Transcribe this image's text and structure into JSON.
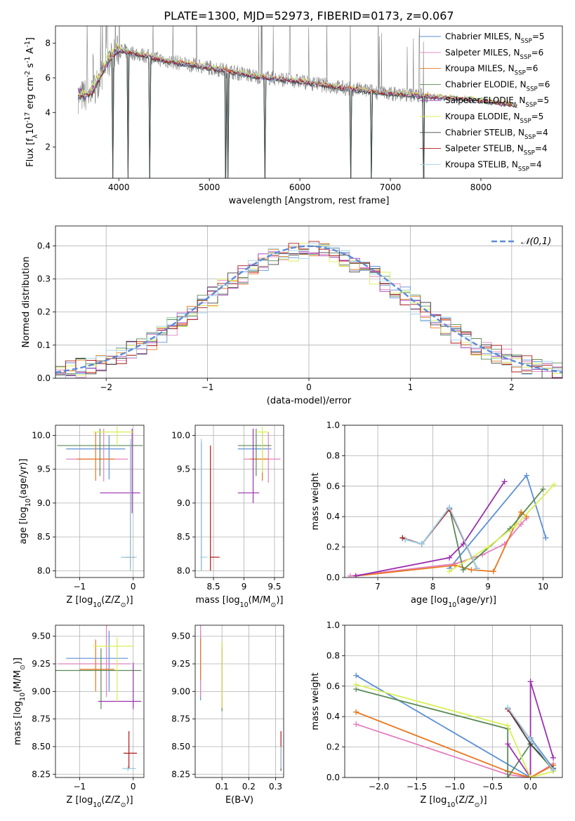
{
  "title": "PLATE=1300, MJD=52973, FIBERID=0173, z=0.067",
  "colors": {
    "Chabrier MILES": "#5b8fd6",
    "Salpeter MILES": "#e480c0",
    "Kroupa MILES": "#e8771e",
    "Chabrier ELODIE": "#5a8a55",
    "Salpeter ELODIE": "#9b30b0",
    "Kroupa ELODIE": "#d8ef55",
    "Chabrier STELIB": "#444444",
    "Salpeter STELIB": "#b01818",
    "Kroupa STELIB": "#9ed2ea",
    "observed": "#808080",
    "gaussian": "#5b8bd6"
  },
  "legend_labels": [
    "Chabrier MILES, N$_{SSP}$=5",
    "Salpeter MILES, N$_{SSP}$=6",
    "Kroupa MILES, N$_{SSP}$=6",
    "Chabrier ELODIE, N$_{SSP}$=6",
    "Salpeter ELODIE, N$_{SSP}$=5",
    "Kroupa ELODIE, N$_{SSP}$=5",
    "Chabrier STELIB, N$_{SSP}$=4",
    "Salpeter STELIB, N$_{SSP}$=4",
    "Kroupa STELIB, N$_{SSP}$=4"
  ],
  "chart_data": [
    {
      "type": "line",
      "id": "spectrum",
      "xlabel": "wavelength [Angstrom, rest frame]",
      "ylabel": "Flux [f$_\\lambda$10$^{-17}$ erg cm$^{-2}$ s$^{-1}$ A$^{-1}$]",
      "xlim": [
        3300,
        8900
      ],
      "ylim": [
        0.2,
        9.0
      ],
      "xticks": [
        4000,
        5000,
        6000,
        7000,
        8000
      ],
      "yticks": [
        2,
        4,
        6,
        8
      ],
      "continuum": {
        "x": [
          3550,
          3700,
          3900,
          4000,
          4200,
          4500,
          5000,
          5500,
          6000,
          6500,
          7000,
          7500,
          8000,
          8400
        ],
        "y": [
          4.9,
          5.1,
          7.1,
          7.6,
          7.4,
          7.0,
          6.6,
          6.1,
          5.8,
          5.4,
          5.1,
          4.9,
          4.7,
          4.4
        ]
      },
      "model_end": 8400,
      "observed_noise": 0.45,
      "observed_end": 7420,
      "absorption_lines": [
        3934,
        4102,
        4341,
        5177,
        5206,
        5617,
        6563,
        6789,
        7371
      ],
      "emission_spikes": [
        3650,
        3720,
        3800,
        3870,
        4340,
        4860,
        5577,
        5890,
        6300,
        6563,
        6863,
        7250,
        7320
      ],
      "legend_position": "top-right"
    },
    {
      "type": "step",
      "id": "residuals",
      "xlabel": "(data-model)/error",
      "ylabel": "Normed distribution",
      "xlim": [
        -2.5,
        2.5
      ],
      "ylim": [
        0.0,
        0.46
      ],
      "xticks": [
        -2,
        -1,
        0,
        1,
        2
      ],
      "yticks": [
        0.0,
        0.1,
        0.2,
        0.3,
        0.4
      ],
      "bins": [
        -2.5,
        2.5,
        50
      ],
      "gaussian_label": "$\\mathcal{N}(0,1)$",
      "legend_position": "top-right",
      "grid": true
    },
    {
      "type": "errorbar",
      "id": "age-vs-Z",
      "xlabel": "Z [log$_{10}$(Z/Z$_\\odot$)]",
      "ylabel": "age  [log$_{10}$(age/yr)]",
      "xlim": [
        -1.45,
        0.2
      ],
      "ylim": [
        7.9,
        10.15
      ],
      "xticks": [
        -1,
        0
      ],
      "yticks": [
        8.0,
        8.5,
        9.0,
        9.5,
        10.0
      ],
      "points": [
        {
          "m": "Chabrier MILES",
          "x": -0.45,
          "y": 9.8,
          "xe": [
            0.8,
            0.3
          ],
          "ye": [
            0.45,
            0.2
          ]
        },
        {
          "m": "Salpeter MILES",
          "x": -0.55,
          "y": 9.65,
          "xe": [
            0.7,
            0.45
          ],
          "ye": [
            0.33,
            0.45
          ]
        },
        {
          "m": "Kroupa MILES",
          "x": -0.7,
          "y": 9.65,
          "xe": [
            0.35,
            0.35
          ],
          "ye": [
            0.32,
            0.4
          ]
        },
        {
          "m": "Chabrier ELODIE",
          "x": -0.62,
          "y": 9.85,
          "xe": [
            0.8,
            0.8
          ],
          "ye": [
            0.45,
            0.25
          ]
        },
        {
          "m": "Salpeter ELODIE",
          "x": -0.02,
          "y": 9.15,
          "xe": [
            0.6,
            0.15
          ],
          "ye": [
            0.3,
            0.95
          ]
        },
        {
          "m": "Kroupa ELODIE",
          "x": -0.3,
          "y": 10.05,
          "xe": [
            0.45,
            0.3
          ],
          "ye": [
            0.2,
            0.08
          ]
        },
        {
          "m": "Chabrier STELIB",
          "x": -0.05,
          "y": 8.2,
          "xe": [
            0.18,
            0.1
          ],
          "ye": [
            0.2,
            1.7
          ]
        },
        {
          "m": "Salpeter STELIB",
          "x": -0.05,
          "y": 8.2,
          "xe": [
            0.1,
            0.08
          ],
          "ye": [
            0.15,
            1.65
          ]
        },
        {
          "m": "Kroupa STELIB",
          "x": -0.05,
          "y": 8.2,
          "xe": [
            0.18,
            0.12
          ],
          "ye": [
            0.2,
            1.75
          ]
        }
      ]
    },
    {
      "type": "errorbar",
      "id": "age-vs-mass",
      "xlabel": "mass [log$_{10}$(M/M$_\\odot$)]",
      "ylabel": "",
      "xlim": [
        8.2,
        9.65
      ],
      "ylim": [
        7.9,
        10.15
      ],
      "xticks": [
        8.5,
        9.0,
        9.5
      ],
      "yticks": [
        8.0,
        8.5,
        9.0,
        9.5,
        10.0
      ],
      "points": [
        {
          "m": "Chabrier MILES",
          "x": 9.3,
          "y": 9.8,
          "xe": [
            0.4,
            0.15
          ],
          "ye": [
            0.45,
            0.25
          ]
        },
        {
          "m": "Salpeter MILES",
          "x": 9.4,
          "y": 9.65,
          "xe": [
            0.4,
            0.2
          ],
          "ye": [
            0.35,
            0.4
          ]
        },
        {
          "m": "Kroupa MILES",
          "x": 9.3,
          "y": 9.65,
          "xe": [
            0.2,
            0.1
          ],
          "ye": [
            0.32,
            0.4
          ]
        },
        {
          "m": "Chabrier ELODIE",
          "x": 9.2,
          "y": 9.85,
          "xe": [
            0.3,
            0.25
          ],
          "ye": [
            0.45,
            0.25
          ]
        },
        {
          "m": "Salpeter ELODIE",
          "x": 9.15,
          "y": 9.15,
          "xe": [
            0.25,
            0.1
          ],
          "ye": [
            0.15,
            0.95
          ]
        },
        {
          "m": "Kroupa ELODIE",
          "x": 9.3,
          "y": 10.05,
          "xe": [
            0.1,
            0.1
          ],
          "ye": [
            0.6,
            0.08
          ]
        },
        {
          "m": "Chabrier STELIB",
          "x": 8.3,
          "y": 8.2,
          "xe": [
            0.01,
            0.01
          ],
          "ye": [
            0.2,
            1.7
          ]
        },
        {
          "m": "Salpeter STELIB",
          "x": 8.45,
          "y": 8.2,
          "xe": [
            0.01,
            0.15
          ],
          "ye": [
            0.2,
            1.65
          ]
        },
        {
          "m": "Kroupa STELIB",
          "x": 8.3,
          "y": 8.2,
          "xe": [
            0.02,
            0.1
          ],
          "ye": [
            0.2,
            1.75
          ]
        }
      ]
    },
    {
      "type": "line",
      "id": "weight-vs-age",
      "xlabel": "age  [log$_{10}$(age/yr)]",
      "ylabel": "mass weight",
      "xlim": [
        6.4,
        10.35
      ],
      "ylim": [
        0.0,
        1.0
      ],
      "xticks": [
        7,
        8,
        9,
        10
      ],
      "yticks": [
        0.0,
        0.2,
        0.4,
        0.6,
        0.8,
        1.0
      ],
      "series": [
        {
          "m": "Chabrier MILES",
          "x": [
            8.3,
            9.7,
            10.05
          ],
          "y": [
            0.06,
            0.67,
            0.26
          ]
        },
        {
          "m": "Salpeter MILES",
          "x": [
            6.5,
            8.4,
            8.9,
            9.3,
            9.6,
            9.7
          ],
          "y": [
            0.01,
            0.09,
            0.15,
            0.22,
            0.35,
            0.39
          ]
        },
        {
          "m": "Kroupa MILES",
          "x": [
            6.6,
            8.4,
            8.7,
            9.1,
            9.6,
            9.7
          ],
          "y": [
            0.01,
            0.08,
            0.05,
            0.04,
            0.43,
            0.4
          ]
        },
        {
          "m": "Chabrier ELODIE",
          "x": [
            7.45,
            7.8,
            8.3,
            8.55,
            9.4,
            10.0
          ],
          "y": [
            0.26,
            0.22,
            0.46,
            0.05,
            0.32,
            0.58
          ]
        },
        {
          "m": "Salpeter ELODIE",
          "x": [
            6.6,
            8.3,
            8.55,
            9.3
          ],
          "y": [
            0.01,
            0.13,
            0.22,
            0.63
          ]
        },
        {
          "m": "Kroupa ELODIE",
          "x": [
            8.3,
            9.0,
            9.5,
            10.2
          ],
          "y": [
            0.04,
            0.2,
            0.34,
            0.61
          ]
        },
        {
          "m": "Chabrier STELIB",
          "x": [
            7.5,
            7.8,
            8.3,
            8.8
          ],
          "y": [
            0.25,
            0.22,
            0.45,
            0.06
          ]
        },
        {
          "m": "Salpeter STELIB",
          "x": [
            7.45,
            7.8,
            8.3,
            8.8
          ],
          "y": [
            0.26,
            0.22,
            0.45,
            0.06
          ]
        },
        {
          "m": "Kroupa STELIB",
          "x": [
            7.5,
            7.8,
            8.3,
            8.8
          ],
          "y": [
            0.25,
            0.22,
            0.46,
            0.06
          ]
        }
      ]
    },
    {
      "type": "errorbar",
      "id": "mass-vs-Z",
      "xlabel": "Z [log$_{10}$(Z/Z$_\\odot$)]",
      "ylabel": "mass [log$_{10}$(M/M$_\\odot$)]",
      "xlim": [
        -1.45,
        0.2
      ],
      "ylim": [
        8.22,
        9.6
      ],
      "xticks": [
        -1,
        0
      ],
      "yticks": [
        8.25,
        8.5,
        8.75,
        9.0,
        9.25,
        9.5
      ],
      "points": [
        {
          "m": "Chabrier MILES",
          "x": -0.45,
          "y": 9.3,
          "xe": [
            0.8,
            0.35
          ],
          "ye": [
            0.3,
            0.25
          ]
        },
        {
          "m": "Salpeter MILES",
          "x": -0.5,
          "y": 9.25,
          "xe": [
            0.9,
            0.45
          ],
          "ye": [
            0.3,
            0.35
          ]
        },
        {
          "m": "Kroupa MILES",
          "x": -0.7,
          "y": 9.2,
          "xe": [
            0.3,
            0.35
          ],
          "ye": [
            0.2,
            0.27
          ]
        },
        {
          "m": "Chabrier ELODIE",
          "x": -0.6,
          "y": 9.19,
          "xe": [
            0.85,
            0.75
          ],
          "ye": [
            0.35,
            0.2
          ]
        },
        {
          "m": "Salpeter ELODIE",
          "x": 0.0,
          "y": 8.91,
          "xe": [
            0.65,
            0.15
          ],
          "ye": [
            0.07,
            0.35
          ]
        },
        {
          "m": "Kroupa ELODIE",
          "x": -0.3,
          "y": 9.41,
          "xe": [
            0.45,
            0.3
          ],
          "ye": [
            0.5,
            0.08
          ]
        },
        {
          "m": "Chabrier STELIB",
          "x": -0.1,
          "y": 8.3,
          "xe": [
            0.1,
            0.15
          ],
          "ye": [
            0.02,
            0.02
          ]
        },
        {
          "m": "Salpeter STELIB",
          "x": -0.08,
          "y": 8.44,
          "xe": [
            0.1,
            0.15
          ],
          "ye": [
            0.14,
            0.2
          ]
        },
        {
          "m": "Kroupa STELIB",
          "x": -0.1,
          "y": 8.3,
          "xe": [
            0.1,
            0.15
          ],
          "ye": [
            0.02,
            0.02
          ]
        }
      ]
    },
    {
      "type": "errorbar",
      "id": "mass-vs-ebv",
      "xlabel": "E(B-V)",
      "ylabel": "",
      "xlim": [
        0.0,
        0.33
      ],
      "ylim": [
        8.22,
        9.6
      ],
      "xticks": [
        0.1,
        0.2,
        0.3
      ],
      "yticks": [
        8.25,
        8.5,
        8.75,
        9.0,
        9.25,
        9.5
      ],
      "points": [
        {
          "m": "Chabrier MILES",
          "x": 0.02,
          "y": 9.3,
          "xe": [
            0,
            0
          ],
          "ye": [
            0.38,
            0.25
          ]
        },
        {
          "m": "Salpeter MILES",
          "x": 0.02,
          "y": 9.25,
          "xe": [
            0,
            0
          ],
          "ye": [
            0.3,
            0.35
          ]
        },
        {
          "m": "Kroupa MILES",
          "x": 0.02,
          "y": 9.2,
          "xe": [
            0,
            0
          ],
          "ye": [
            0.1,
            0.28
          ]
        },
        {
          "m": "Chabrier ELODIE",
          "x": 0.1,
          "y": 9.19,
          "xe": [
            0,
            0
          ],
          "ye": [
            0.37,
            0.26
          ]
        },
        {
          "m": "Salpeter ELODIE",
          "x": 0.1,
          "y": 9.1,
          "xe": [
            0,
            0
          ],
          "ye": [
            0.25,
            0.3
          ]
        },
        {
          "m": "Kroupa ELODIE",
          "x": 0.1,
          "y": 9.2,
          "xe": [
            0,
            0
          ],
          "ye": [
            0.35,
            0.25
          ]
        },
        {
          "m": "Chabrier STELIB",
          "x": 0.32,
          "y": 8.3,
          "xe": [
            0,
            0
          ],
          "ye": [
            0.02,
            0.2
          ]
        },
        {
          "m": "Salpeter STELIB",
          "x": 0.32,
          "y": 8.44,
          "xe": [
            0,
            0
          ],
          "ye": [
            0.14,
            0.2
          ]
        },
        {
          "m": "Kroupa STELIB",
          "x": 0.32,
          "y": 8.4,
          "xe": [
            0,
            0
          ],
          "ye": [
            0.1,
            0.1
          ]
        }
      ]
    },
    {
      "type": "line",
      "id": "weight-vs-Z",
      "xlabel": "Z [log$_{10}$(Z/Z$_\\odot$)]",
      "ylabel": "mass weight",
      "xlim": [
        -2.45,
        0.42
      ],
      "ylim": [
        0.0,
        1.0
      ],
      "xticks": [
        -2.0,
        -1.5,
        -1.0,
        -0.5,
        0.0
      ],
      "yticks": [
        0.0,
        0.2,
        0.4,
        0.6,
        0.8,
        1.0
      ],
      "series": [
        {
          "m": "Chabrier MILES",
          "x": [
            -2.3,
            0.0,
            0.0,
            0.3
          ],
          "y": [
            0.67,
            0.0,
            0.26,
            0.06
          ]
        },
        {
          "m": "Salpeter MILES",
          "x": [
            -2.3,
            -0.3,
            0.0,
            0.3
          ],
          "y": [
            0.35,
            0.02,
            0.0,
            0.09
          ]
        },
        {
          "m": "Kroupa MILES",
          "x": [
            -2.3,
            -0.3,
            0.0,
            0.3
          ],
          "y": [
            0.43,
            0.04,
            0.0,
            0.08
          ]
        },
        {
          "m": "Chabrier ELODIE",
          "x": [
            -2.3,
            -0.3,
            -0.3,
            0.0,
            0.3
          ],
          "y": [
            0.58,
            0.32,
            0.0,
            0.22,
            0.05
          ]
        },
        {
          "m": "Salpeter ELODIE",
          "x": [
            -0.3,
            0.0,
            0.0,
            0.3
          ],
          "y": [
            0.22,
            0.0,
            0.63,
            0.13
          ]
        },
        {
          "m": "Kroupa ELODIE",
          "x": [
            -2.3,
            -0.3,
            0.0,
            0.3
          ],
          "y": [
            0.61,
            0.34,
            0.0,
            0.04
          ]
        },
        {
          "m": "Chabrier STELIB",
          "x": [
            -0.3,
            0.0,
            0.3
          ],
          "y": [
            0.45,
            0.22,
            0.06
          ]
        },
        {
          "m": "Salpeter STELIB",
          "x": [
            -0.3,
            0.0,
            0.3
          ],
          "y": [
            0.45,
            0.25,
            0.05
          ]
        },
        {
          "m": "Kroupa STELIB",
          "x": [
            -0.3,
            0.0,
            0.3
          ],
          "y": [
            0.46,
            0.25,
            0.05
          ]
        }
      ]
    }
  ]
}
